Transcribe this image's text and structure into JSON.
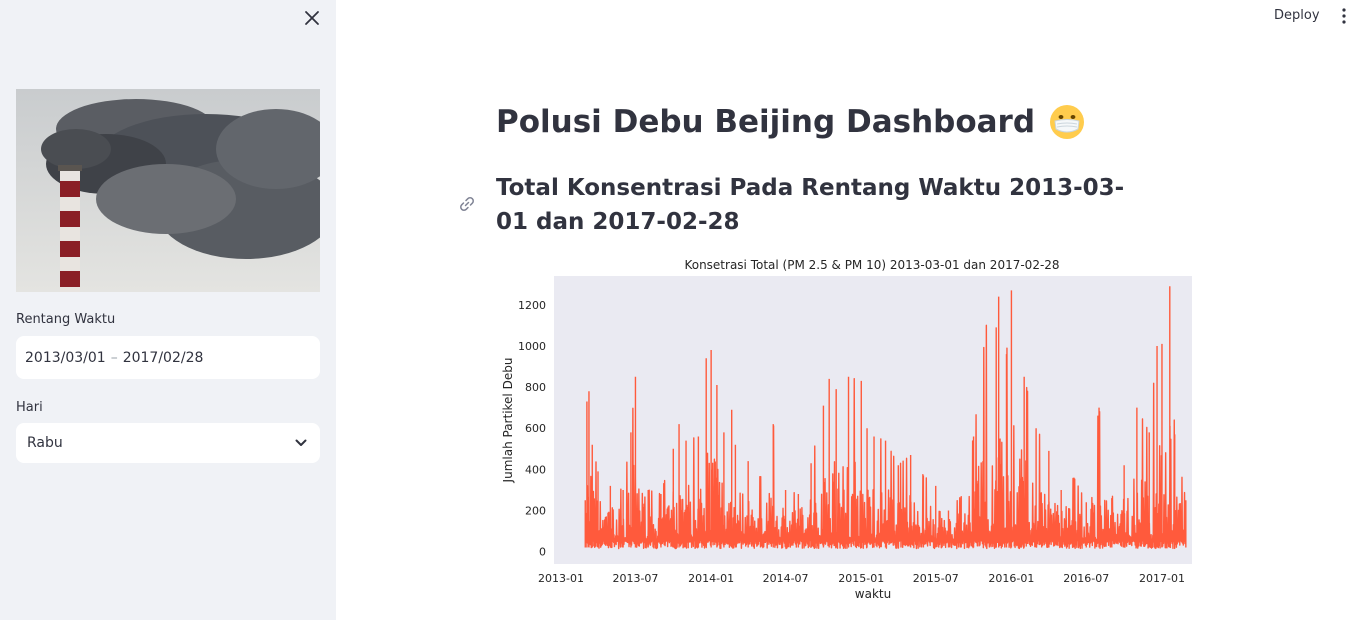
{
  "sidebar": {
    "close_icon": "close-icon",
    "image_alt": "smokestack-pollution-image",
    "date_range": {
      "label": "Rentang Waktu",
      "start": "2013/03/01",
      "separator": "–",
      "end": "2017/02/28"
    },
    "day": {
      "label": "Hari",
      "value": "Rabu",
      "icon": "chevron-down-icon"
    }
  },
  "topbar": {
    "deploy_label": "Deploy",
    "menu_icon": "kebab-menu-icon"
  },
  "main": {
    "title": "Polusi Debu Beijing Dashboard",
    "title_emoji": "mask-face-emoji",
    "subtitle": "Total Konsentrasi Pada Rentang Waktu 2013-03-01 dan 2017-02-28",
    "link_icon": "link-icon"
  },
  "chart_data": {
    "type": "line",
    "title": "Konsetrasi Total (PM 2.5 & PM 10) 2013-03-01 dan 2017-02-28",
    "xlabel": "waktu",
    "ylabel": "Jumlah Partikel Debu",
    "x_ticks": [
      "2013-01",
      "2013-07",
      "2014-01",
      "2014-07",
      "2015-01",
      "2015-07",
      "2016-01",
      "2016-07",
      "2017-01"
    ],
    "y_ticks": [
      0,
      200,
      400,
      600,
      800,
      1000,
      1200
    ],
    "xlim": [
      "2012-12-15",
      "2017-03-15"
    ],
    "ylim": [
      -60,
      1340
    ],
    "grid": false,
    "line_color": "#ff5a3c",
    "background_color": "#eaeaf2",
    "series": [
      {
        "x": [
          "2013-03-01",
          "2013-03-05",
          "2013-03-10",
          "2013-03-18",
          "2013-04-01",
          "2013-05-01",
          "2013-06-01",
          "2013-06-20",
          "2013-07-01",
          "2013-08-01",
          "2013-09-01",
          "2013-10-01",
          "2013-10-15",
          "2013-11-01",
          "2013-12-01",
          "2013-12-20",
          "2014-01-01",
          "2014-01-15",
          "2014-02-01",
          "2014-02-20",
          "2014-03-01",
          "2014-04-01",
          "2014-05-01",
          "2014-06-01",
          "2014-07-01",
          "2014-08-01",
          "2014-09-01",
          "2014-10-01",
          "2014-10-15",
          "2014-11-01",
          "2014-12-01",
          "2015-01-01",
          "2015-01-15",
          "2015-02-01",
          "2015-03-01",
          "2015-04-01",
          "2015-05-01",
          "2015-06-01",
          "2015-07-01",
          "2015-08-01",
          "2015-09-01",
          "2015-10-01",
          "2015-11-01",
          "2015-11-25",
          "2015-12-01",
          "2015-12-20",
          "2016-01-01",
          "2016-02-01",
          "2016-03-01",
          "2016-04-01",
          "2016-05-01",
          "2016-06-01",
          "2016-07-01",
          "2016-08-01",
          "2016-09-01",
          "2016-10-01",
          "2016-11-01",
          "2016-12-01",
          "2016-12-20",
          "2017-01-01",
          "2017-01-20",
          "2017-02-01",
          "2017-02-28"
        ],
        "values": [
          250,
          730,
          780,
          520,
          390,
          320,
          300,
          580,
          850,
          300,
          280,
          500,
          620,
          540,
          560,
          940,
          980,
          810,
          580,
          690,
          520,
          440,
          360,
          620,
          300,
          280,
          430,
          710,
          840,
          790,
          850,
          830,
          600,
          560,
          540,
          420,
          470,
          370,
          320,
          200,
          270,
          560,
          1100,
          1090,
          1240,
          960,
          1270,
          850,
          600,
          490,
          300,
          360,
          240,
          700,
          260,
          420,
          700,
          580,
          1000,
          1010,
          1290,
          570,
          250
        ]
      }
    ]
  }
}
